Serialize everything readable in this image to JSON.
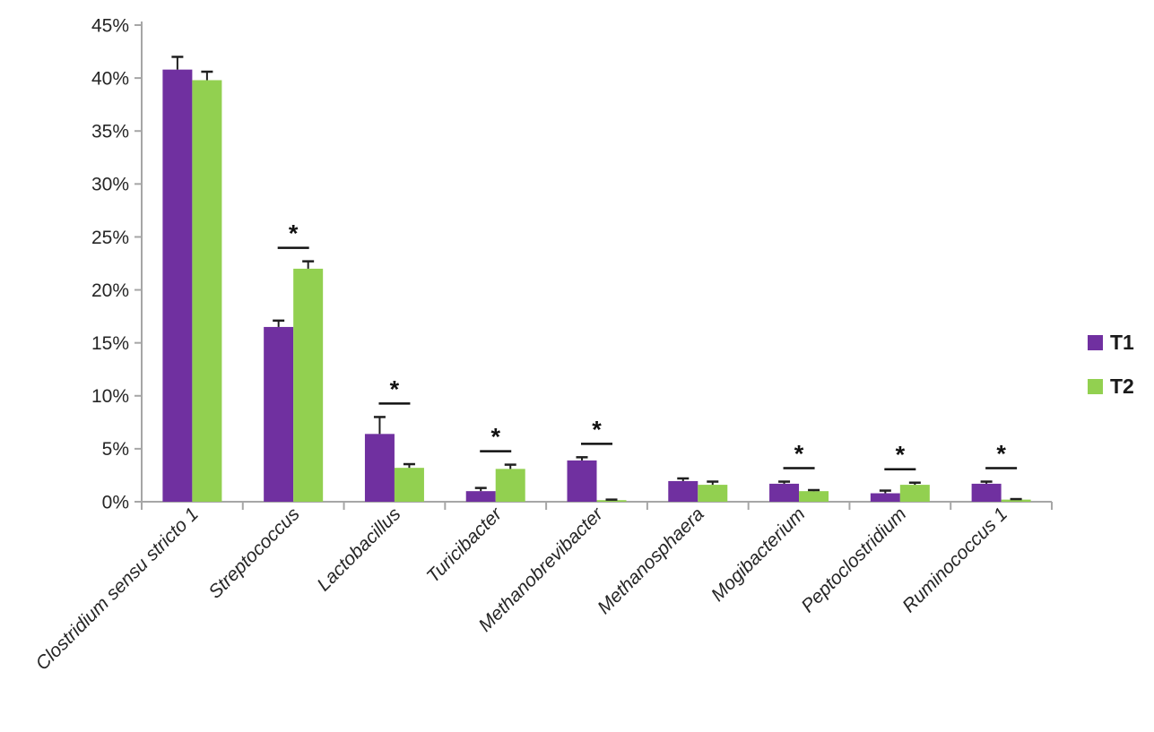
{
  "chart_data": {
    "type": "bar",
    "title": "",
    "xlabel": "",
    "ylabel": "",
    "categories": [
      "Clostridium sensu stricto 1",
      "Streptococcus",
      "Lactobacillus",
      "Turicibacter",
      "Methanobrevibacter",
      "Methanosphaera",
      "Mogibacterium",
      "Peptoclostridium",
      "Ruminococcus 1"
    ],
    "series": [
      {
        "name": "T1",
        "color": "#7030A0",
        "values": [
          40.8,
          16.5,
          6.4,
          1.0,
          3.9,
          1.95,
          1.7,
          0.8,
          1.7
        ],
        "errors": [
          1.2,
          0.6,
          1.6,
          0.3,
          0.3,
          0.25,
          0.2,
          0.25,
          0.2
        ]
      },
      {
        "name": "T2",
        "color": "#92D050",
        "values": [
          39.8,
          22.0,
          3.2,
          3.1,
          0.15,
          1.6,
          1.0,
          1.6,
          0.2
        ],
        "errors": [
          0.8,
          0.7,
          0.35,
          0.4,
          0.05,
          0.3,
          0.1,
          0.2,
          0.05
        ]
      }
    ],
    "significance": [
      false,
      true,
      true,
      true,
      true,
      false,
      true,
      true,
      true
    ],
    "significance_marker": "*",
    "ylim": [
      0,
      45
    ],
    "ytick_step": 5,
    "ytick_labels": [
      "0%",
      "5%",
      "10%",
      "15%",
      "20%",
      "25%",
      "30%",
      "35%",
      "40%",
      "45%"
    ],
    "grid": false,
    "legend_position": "right",
    "category_label_style": "italic, rotated 45 degrees",
    "axis_color": "#A6A6A6",
    "error_bar_color": "#1f1f1f",
    "text_color": "#262626"
  },
  "legend": {
    "items": [
      {
        "label": "T1",
        "color": "#7030A0"
      },
      {
        "label": "T2",
        "color": "#92D050"
      }
    ]
  }
}
